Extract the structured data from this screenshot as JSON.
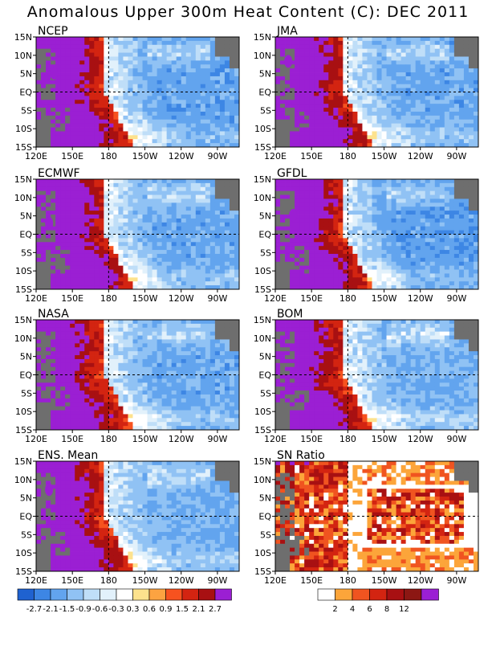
{
  "title": "Anomalous Upper 300m Heat Content (C): DEC 2011",
  "panels": [
    {
      "label": "NCEP",
      "warm": 1.0,
      "cool": 1.0,
      "blob": [
        2,
        5
      ]
    },
    {
      "label": "JMA",
      "warm": 1.05,
      "cool": 0.95,
      "blob": [
        1,
        2
      ]
    },
    {
      "label": "ECMWF",
      "warm": 1.1,
      "cool": 0.95,
      "blob": [
        1,
        7
      ]
    },
    {
      "label": "GFDL",
      "warm": 1.0,
      "cool": 1.05,
      "blob": [
        2,
        5
      ]
    },
    {
      "label": "NASA",
      "warm": 0.9,
      "cool": 0.95,
      "blob": null
    },
    {
      "label": "BOM",
      "warm": 0.95,
      "cool": 0.85,
      "blob": null
    },
    {
      "label": "ENS. Mean",
      "warm": 0.95,
      "cool": 0.9,
      "blob": [
        1,
        3
      ]
    },
    {
      "label": "SN Ratio",
      "sn": true
    }
  ],
  "lat_ticks": [
    "15N",
    "10N",
    "5N",
    "EQ",
    "5S",
    "10S",
    "15S"
  ],
  "lon_ticks": [
    "120E",
    "150E",
    "180",
    "150W",
    "120W",
    "90W"
  ],
  "chart_data": [
    {
      "type": "heatmap",
      "name": "anomaly",
      "title": "Anomalous Upper 300m Heat Content (C): DEC 2011",
      "x": [
        "120E",
        "150E",
        "180",
        "150W",
        "120W",
        "90W"
      ],
      "y": [
        "15N",
        "10N",
        "5N",
        "EQ",
        "5S",
        "10S",
        "15S"
      ],
      "legend_levels": [
        "-2.7",
        "-2.1",
        "-1.5",
        "-0.9",
        "-0.6",
        "-0.3",
        "0.3",
        "0.6",
        "0.9",
        "1.5",
        "2.1",
        "2.7"
      ],
      "legend_colors": [
        "#1f62d0",
        "#3d86e4",
        "#62a4ee",
        "#90c2f4",
        "#bfdef8",
        "#e2f1fb",
        "#ffffff",
        "#fde28d",
        "#fca341",
        "#f7521f",
        "#d32411",
        "#a81012",
        "#9b1fd3"
      ]
    },
    {
      "type": "heatmap",
      "name": "sn-ratio",
      "title": "SN Ratio",
      "legend_levels": [
        "2",
        "4",
        "6",
        "8",
        "12"
      ],
      "legend_colors": [
        "#ffffff",
        "#fca53a",
        "#f05420",
        "#d32411",
        "#a81012",
        "#8c1713",
        "#9b1fd3"
      ]
    }
  ]
}
